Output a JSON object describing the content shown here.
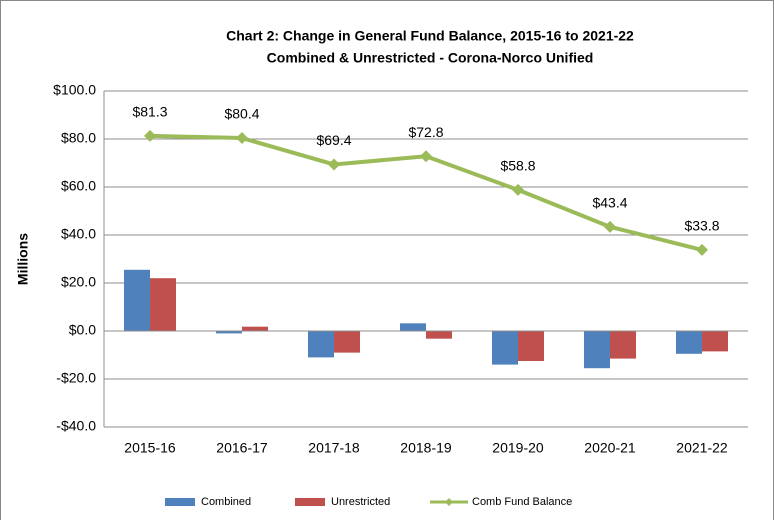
{
  "chart_data": {
    "type": "bar",
    "title": "Chart 2: Change in General Fund Balance, 2015-16 to 2021-22",
    "subtitle": "Combined & Unrestricted - Corona-Norco Unified",
    "y_label": "Millions",
    "categories": [
      "2015-16",
      "2016-17",
      "2017-18",
      "2018-19",
      "2019-20",
      "2020-21",
      "2021-22"
    ],
    "series": [
      {
        "name": "Combined",
        "type": "bar",
        "color": "#4f81bd",
        "values": [
          25.5,
          -1,
          -11,
          3.2,
          -14,
          -15.5,
          -9.5
        ]
      },
      {
        "name": "Unrestricted",
        "type": "bar",
        "color": "#c0504d",
        "values": [
          22,
          1.8,
          -9,
          -3.2,
          -12.5,
          -11.5,
          -8.5
        ]
      },
      {
        "name": "Comb Fund Balance",
        "type": "line",
        "color": "#9bbb59",
        "values": [
          81.3,
          80.4,
          69.4,
          72.8,
          58.8,
          43.4,
          33.8
        ],
        "value_labels": [
          "$81.3",
          "$80.4",
          "$69.4",
          "$72.8",
          "$58.8",
          "$43.4",
          "$33.8"
        ]
      }
    ],
    "ylim": [
      -40,
      100
    ],
    "yticks": [
      {
        "value": -40,
        "label": "-$40.0"
      },
      {
        "value": -20,
        "label": "-$20.0"
      },
      {
        "value": 0,
        "label": "$0.0"
      },
      {
        "value": 20,
        "label": "$20.0"
      },
      {
        "value": 40,
        "label": "$40.0"
      },
      {
        "value": 60,
        "label": "$60.0"
      },
      {
        "value": 80,
        "label": "$80.0"
      },
      {
        "value": 100,
        "label": "$100.0"
      }
    ],
    "grid": true
  }
}
